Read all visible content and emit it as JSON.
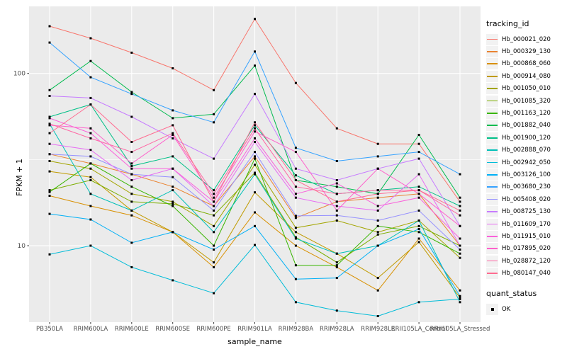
{
  "chart_data": {
    "type": "line",
    "title": "",
    "xlabel": "sample_name",
    "ylabel": "FPKM + 1",
    "yscale": "log10",
    "ylim": [
      3.6,
      245
    ],
    "y_ticks": [
      {
        "label": "100",
        "value": 100
      },
      {
        "label": "10",
        "value": 10
      }
    ],
    "y_minor_ticks": [
      31.6
    ],
    "grid": true,
    "legend_position": "right",
    "panel_bg": "#EBEBEB",
    "grid_color": "#FFFFFF",
    "tick_color": "#333333",
    "tick_label_color": "#4D4D4D",
    "marker": {
      "shape": "square",
      "color": "#000000",
      "size": 3
    },
    "categories": [
      "PB350LA",
      "RRIM600LA",
      "RRIM600LE",
      "RRIM600SE",
      "RRIM600PE",
      "RRIM901LA",
      "RRIM928BA",
      "RRIM928LA",
      "RRIM928LE",
      "RRII105LA_Control",
      "RRII105LA_Stressed"
    ],
    "series": [
      {
        "name": "Hb_000021_020",
        "color": "#F8766D",
        "values": [
          188,
          160,
          132,
          107,
          80,
          207,
          88,
          48,
          39,
          39,
          18
        ]
      },
      {
        "name": "Hb_000329_130",
        "color": "#EA8331",
        "values": [
          34,
          30,
          26,
          22,
          17,
          33,
          14.5,
          18,
          19,
          20,
          10
        ]
      },
      {
        "name": "Hb_000868_060",
        "color": "#D89000",
        "values": [
          19.5,
          17,
          15,
          12,
          7.5,
          15.6,
          10,
          7.5,
          5.5,
          11,
          5.5
        ]
      },
      {
        "name": "Hb_000914_080",
        "color": "#C09B00",
        "values": [
          27,
          25,
          16,
          12,
          8,
          20.4,
          12,
          9,
          6.5,
          10.5,
          5
        ]
      },
      {
        "name": "Hb_001050_010",
        "color": "#A3A500",
        "values": [
          31,
          28,
          20,
          18,
          13,
          29.5,
          12.7,
          14,
          12,
          14,
          8.5
        ]
      },
      {
        "name": "Hb_001085_320",
        "color": "#7CAE00",
        "values": [
          21,
          24,
          18,
          17.5,
          15,
          26.5,
          11.2,
          8,
          11.6,
          13,
          10
        ]
      },
      {
        "name": "Hb_001163_120",
        "color": "#39B600",
        "values": [
          20.5,
          30,
          22,
          17,
          10,
          32,
          7.7,
          7.7,
          13,
          12,
          9
        ]
      },
      {
        "name": "Hb_001882_040",
        "color": "#00BB4E",
        "values": [
          80,
          118,
          78,
          55,
          58,
          111,
          24,
          22,
          20,
          44,
          19
        ]
      },
      {
        "name": "Hb_001900_120",
        "color": "#00C087",
        "values": [
          56,
          66,
          29,
          33,
          21,
          50,
          25.6,
          20,
          21,
          22,
          17
        ]
      },
      {
        "name": "Hb_002888_070",
        "color": "#00C0B8",
        "values": [
          51,
          20,
          16,
          21,
          12,
          26,
          11,
          9,
          10,
          14,
          4.7
        ]
      },
      {
        "name": "Hb_002942_050",
        "color": "#00BCD8",
        "values": [
          8.9,
          10,
          7.5,
          6.3,
          5.3,
          10.1,
          4.7,
          4.2,
          3.9,
          4.7,
          4.9
        ]
      },
      {
        "name": "Hb_003126_100",
        "color": "#00B0F6",
        "values": [
          15.3,
          14.2,
          10.4,
          12,
          9.5,
          13,
          6.4,
          6.5,
          10,
          12.5,
          5.1
        ]
      },
      {
        "name": "Hb_003680_230",
        "color": "#35A2FF",
        "values": [
          151,
          95,
          76,
          61,
          52,
          134,
          37,
          31,
          33,
          35,
          26
        ]
      },
      {
        "name": "Hb_005408_020",
        "color": "#9590FF",
        "values": [
          34,
          33,
          26,
          25,
          16,
          35,
          14.9,
          15,
          14,
          16,
          9.5
        ]
      },
      {
        "name": "Hb_008725_130",
        "color": "#C77CFF",
        "values": [
          74,
          72,
          56,
          42,
          32,
          76,
          28,
          24,
          28,
          32,
          13
        ]
      },
      {
        "name": "Hb_011609_170",
        "color": "#E76BF3",
        "values": [
          39,
          36,
          24,
          28,
          17,
          40,
          19,
          17,
          16,
          26,
          10
        ]
      },
      {
        "name": "Hb_011915_010",
        "color": "#FA62DB",
        "values": [
          55,
          45,
          28,
          28,
          18,
          42,
          20,
          23,
          17,
          19,
          11
        ]
      },
      {
        "name": "Hb_017895_020",
        "color": "#FF61CC",
        "values": [
          50,
          48,
          30,
          44,
          19,
          46,
          35,
          16,
          28,
          20,
          13
        ]
      },
      {
        "name": "Hb_028872_120",
        "color": "#FF67A4",
        "values": [
          51,
          42,
          35,
          45,
          20,
          48,
          22,
          20,
          21,
          21,
          15
        ]
      },
      {
        "name": "Hb_080147_040",
        "color": "#FF6C91",
        "values": [
          45,
          66,
          40,
          50,
          18,
          52,
          24,
          18,
          20,
          21,
          16
        ]
      }
    ]
  },
  "legend": {
    "tracking_title": "tracking_id",
    "quant_title": "quant_status",
    "quant_ok_label": "OK"
  }
}
